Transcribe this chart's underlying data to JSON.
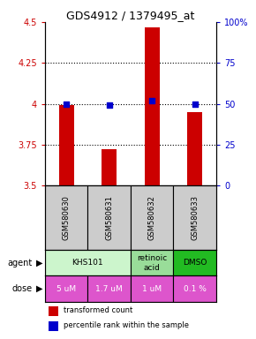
{
  "title": "GDS4912 / 1379495_at",
  "samples": [
    "GSM580630",
    "GSM580631",
    "GSM580632",
    "GSM580633"
  ],
  "bar_values": [
    3.99,
    3.72,
    4.47,
    3.95
  ],
  "percentile_values": [
    4.0,
    3.99,
    4.02,
    4.0
  ],
  "bar_color": "#cc0000",
  "percentile_color": "#0000cc",
  "ylim": [
    3.5,
    4.5
  ],
  "yticks_left": [
    3.5,
    3.75,
    4.0,
    4.25,
    4.5
  ],
  "yticks_right": [
    0,
    25,
    50,
    75,
    100
  ],
  "ytick_labels_left": [
    "3.5",
    "3.75",
    "4",
    "4.25",
    "4.5"
  ],
  "ytick_labels_right": [
    "0",
    "25",
    "50",
    "75",
    "100%"
  ],
  "left_tick_color": "#cc0000",
  "right_tick_color": "#0000cc",
  "agent_spans": [
    [
      0,
      2,
      "KHS101",
      "#ccf5cc"
    ],
    [
      2,
      3,
      "retinoic\nacid",
      "#99dd99"
    ],
    [
      3,
      4,
      "DMSO",
      "#22bb22"
    ]
  ],
  "dose_labels": [
    "5 uM",
    "1.7 uM",
    "1 uM",
    "0.1 %"
  ],
  "dose_color": "#dd55cc",
  "dose_text_color": "#ffffff",
  "sample_bg_color": "#cccccc",
  "bar_width": 0.35,
  "grid_ticks": [
    3.75,
    4.0,
    4.25
  ],
  "legend_bar_color": "#cc0000",
  "legend_dot_color": "#0000cc"
}
